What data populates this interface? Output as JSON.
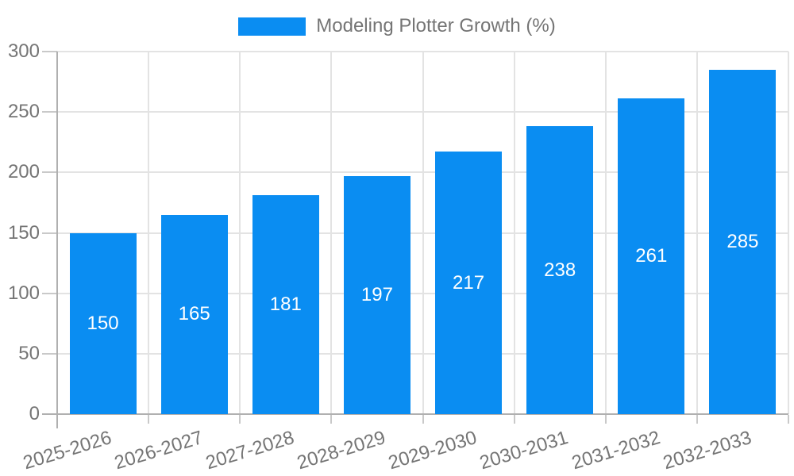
{
  "legend": {
    "label": "Modeling Plotter Growth (%)"
  },
  "chart_data": {
    "type": "bar",
    "title": "Modeling Plotter Growth (%)",
    "series_name": "Modeling Plotter Growth (%)",
    "categories": [
      "2025-2026",
      "2026-2027",
      "2027-2028",
      "2028-2029",
      "2029-2030",
      "2030-2031",
      "2031-2032",
      "2032-2033"
    ],
    "values": [
      150,
      165,
      181,
      197,
      217,
      238,
      261,
      285
    ],
    "bar_labels": [
      "150",
      "165",
      "181",
      "197",
      "217",
      "238",
      "261",
      "285"
    ],
    "xlabel": "",
    "ylabel": "",
    "ylim": [
      0,
      300
    ],
    "yticks": [
      0,
      50,
      100,
      150,
      200,
      250,
      300
    ],
    "grid": true,
    "legend_position": "top",
    "colors": {
      "bar": "#0a8df2",
      "bar_label": "#ffffff",
      "axis_text": "#757575",
      "legend_text": "#757575",
      "gridline": "#e3e3e3",
      "tick": "#c9c9c9",
      "axis_line": "#b0b0b0",
      "background": "#ffffff"
    }
  }
}
